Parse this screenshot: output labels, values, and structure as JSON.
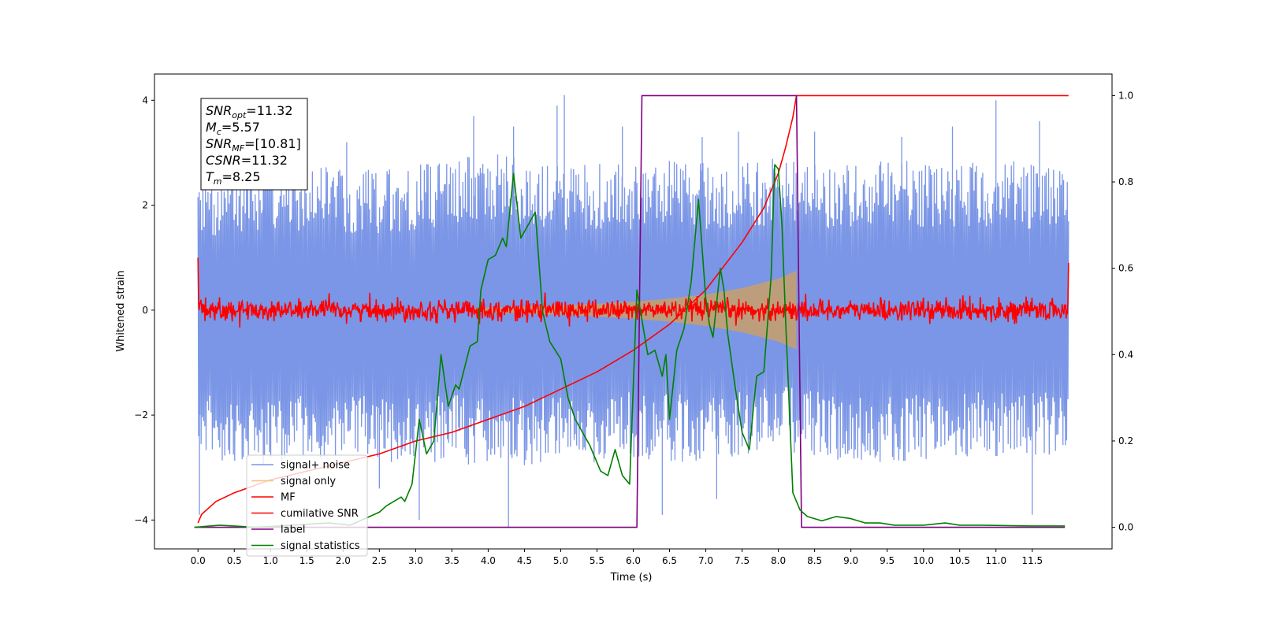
{
  "chart_data": {
    "type": "line",
    "xlabel": "Time (s)",
    "ylabel": "Whitened strain",
    "ylabel_right": "",
    "xlim": [
      -0.6,
      12.6
    ],
    "ylim": [
      -4.55,
      4.5
    ],
    "ylim_right": [
      -0.05,
      1.05
    ],
    "x_ticks": [
      0.0,
      0.5,
      1.0,
      1.5,
      2.0,
      2.5,
      3.0,
      3.5,
      4.0,
      4.5,
      5.0,
      5.5,
      6.0,
      6.5,
      7.0,
      7.5,
      8.0,
      8.5,
      9.0,
      9.5,
      10.0,
      10.5,
      11.0,
      11.5
    ],
    "x_tick_labels": [
      "0.0",
      "0.5",
      "1.0",
      "1.5",
      "2.0",
      "2.5",
      "3.0",
      "3.5",
      "4.0",
      "4.5",
      "5.0",
      "5.5",
      "6.0",
      "6.5",
      "7.0",
      "7.5",
      "8.0",
      "8.5",
      "9.0",
      "9.5",
      "10.0",
      "10.5",
      "11.0",
      "11.5"
    ],
    "y_ticks": [
      -4,
      -2,
      0,
      2,
      4
    ],
    "y_tick_labels": [
      "−4",
      "−2",
      "0",
      "2",
      "4"
    ],
    "y_ticks_right": [
      0.0,
      0.2,
      0.4,
      0.6,
      0.8,
      1.0
    ],
    "y_tick_labels_right": [
      "0.0",
      "0.2",
      "0.4",
      "0.6",
      "0.8",
      "1.0"
    ],
    "grid": false,
    "legend_position": "lower-left",
    "info_box": {
      "lines": [
        {
          "sym": "SNR",
          "sub": "opt",
          "val": "=11.32"
        },
        {
          "sym": "M",
          "sub": "c",
          "val": "=5.57"
        },
        {
          "sym": "SNR",
          "sub": "MF",
          "val": "=[10.81]"
        },
        {
          "sym": "CSNR",
          "sub": "",
          "val": "=11.32"
        },
        {
          "sym": "T",
          "sub": "m",
          "val": "=8.25"
        }
      ]
    },
    "series": [
      {
        "name": "signal+ noise",
        "axis": "left",
        "color": "#7b96e6",
        "kind": "noise_band",
        "x_range": [
          0.0,
          12.0
        ],
        "envelope_x": [
          0.0,
          0.5,
          1.0,
          1.5,
          2.0,
          2.5,
          3.0,
          3.5,
          4.0,
          4.5,
          5.0,
          5.5,
          6.0,
          6.5,
          7.0,
          7.5,
          8.0,
          8.5,
          9.0,
          9.5,
          10.0,
          10.5,
          11.0,
          11.5,
          12.0
        ],
        "envelope_upper": [
          2.6,
          2.7,
          2.8,
          2.8,
          2.7,
          2.7,
          2.8,
          2.9,
          3.0,
          2.9,
          2.8,
          2.8,
          2.8,
          2.9,
          2.8,
          2.8,
          2.9,
          2.8,
          2.8,
          2.9,
          2.8,
          2.8,
          2.9,
          2.8,
          2.7
        ],
        "envelope_lower": [
          -2.8,
          -2.9,
          -3.0,
          -2.9,
          -2.8,
          -2.9,
          -3.0,
          -2.9,
          -3.0,
          -3.0,
          -2.9,
          -2.9,
          -2.8,
          -2.9,
          -2.9,
          -2.8,
          -2.7,
          -2.8,
          -2.9,
          -2.9,
          -2.9,
          -2.8,
          -2.9,
          -2.8,
          -2.7
        ],
        "spikes": [
          [
            0.02,
            -3.9
          ],
          [
            0.9,
            3.3
          ],
          [
            2.05,
            3.2
          ],
          [
            2.5,
            -3.4
          ],
          [
            3.05,
            -4.0
          ],
          [
            3.8,
            3.7
          ],
          [
            4.28,
            -4.15
          ],
          [
            4.35,
            3.5
          ],
          [
            4.95,
            3.9
          ],
          [
            5.05,
            4.1
          ],
          [
            5.85,
            3.5
          ],
          [
            6.4,
            -3.9
          ],
          [
            6.95,
            3.3
          ],
          [
            7.15,
            -3.6
          ],
          [
            7.45,
            3.4
          ],
          [
            8.5,
            3.4
          ],
          [
            9.7,
            3.3
          ],
          [
            10.4,
            3.5
          ],
          [
            11.0,
            4.0
          ],
          [
            11.5,
            -3.9
          ],
          [
            11.6,
            3.6
          ]
        ]
      },
      {
        "name": "signal only",
        "axis": "left",
        "color": "#f5c57a",
        "kind": "chirp",
        "x_range": [
          3.8,
          8.25
        ],
        "amplitude_x": [
          3.8,
          4.5,
          5.0,
          5.5,
          6.0,
          6.5,
          7.0,
          7.5,
          8.0,
          8.25
        ],
        "amplitude": [
          0.04,
          0.07,
          0.09,
          0.12,
          0.16,
          0.22,
          0.3,
          0.42,
          0.6,
          0.75
        ]
      },
      {
        "name": "MF",
        "axis": "left",
        "color": "#ff0000",
        "kind": "noise_band",
        "x_range": [
          0.0,
          12.0
        ],
        "amplitude": 0.18,
        "end_values": [
          1.0,
          0.9
        ]
      },
      {
        "name": "cumilative SNR",
        "axis": "right",
        "color": "#ff0000",
        "kind": "line",
        "x": [
          0.0,
          0.05,
          0.25,
          0.5,
          1.0,
          1.5,
          2.0,
          2.5,
          3.0,
          3.5,
          4.0,
          4.5,
          5.0,
          5.5,
          6.0,
          6.5,
          7.0,
          7.5,
          7.8,
          8.0,
          8.1,
          8.2,
          8.25,
          8.3,
          10.0,
          12.0
        ],
        "y": [
          0.01,
          0.03,
          0.06,
          0.08,
          0.11,
          0.13,
          0.15,
          0.17,
          0.2,
          0.22,
          0.25,
          0.28,
          0.32,
          0.36,
          0.41,
          0.47,
          0.55,
          0.66,
          0.74,
          0.82,
          0.88,
          0.95,
          1.0,
          1.0,
          1.0,
          1.0
        ]
      },
      {
        "name": "label",
        "axis": "right",
        "color": "#800080",
        "kind": "line",
        "x": [
          -0.05,
          6.05,
          6.12,
          8.25,
          8.32,
          11.95
        ],
        "y": [
          0.0,
          0.0,
          1.0,
          1.0,
          0.0,
          0.0
        ]
      },
      {
        "name": "signal statistics",
        "axis": "right",
        "color": "#008000",
        "kind": "line",
        "x": [
          -0.05,
          0.3,
          0.8,
          1.3,
          1.8,
          2.1,
          2.3,
          2.5,
          2.6,
          2.8,
          2.85,
          2.95,
          3.05,
          3.15,
          3.25,
          3.35,
          3.45,
          3.55,
          3.6,
          3.75,
          3.85,
          3.9,
          4.0,
          4.1,
          4.2,
          4.25,
          4.35,
          4.45,
          4.55,
          4.65,
          4.75,
          4.85,
          5.0,
          5.1,
          5.2,
          5.3,
          5.4,
          5.55,
          5.65,
          5.75,
          5.85,
          5.95,
          6.05,
          6.2,
          6.3,
          6.4,
          6.45,
          6.5,
          6.6,
          6.7,
          6.8,
          6.9,
          7.0,
          7.05,
          7.1,
          7.2,
          7.25,
          7.3,
          7.4,
          7.5,
          7.6,
          7.7,
          7.8,
          7.9,
          7.95,
          8.0,
          8.05,
          8.1,
          8.2,
          8.3,
          8.4,
          8.6,
          8.8,
          9.0,
          9.2,
          9.4,
          9.6,
          10.0,
          10.3,
          10.5,
          10.8,
          11.5,
          11.95
        ],
        "y": [
          0.0,
          0.005,
          0.0,
          0.005,
          0.01,
          0.005,
          0.02,
          0.035,
          0.05,
          0.07,
          0.06,
          0.1,
          0.25,
          0.17,
          0.2,
          0.4,
          0.28,
          0.33,
          0.32,
          0.42,
          0.43,
          0.55,
          0.62,
          0.63,
          0.67,
          0.65,
          0.82,
          0.67,
          0.7,
          0.73,
          0.5,
          0.43,
          0.39,
          0.3,
          0.25,
          0.22,
          0.19,
          0.13,
          0.12,
          0.18,
          0.12,
          0.1,
          0.55,
          0.4,
          0.41,
          0.35,
          0.4,
          0.25,
          0.41,
          0.46,
          0.57,
          0.76,
          0.53,
          0.47,
          0.44,
          0.6,
          0.55,
          0.45,
          0.33,
          0.22,
          0.18,
          0.35,
          0.36,
          0.58,
          0.84,
          0.83,
          0.7,
          0.48,
          0.08,
          0.04,
          0.025,
          0.015,
          0.025,
          0.02,
          0.01,
          0.01,
          0.005,
          0.005,
          0.01,
          0.005,
          0.005,
          0.003,
          0.003
        ]
      }
    ]
  }
}
